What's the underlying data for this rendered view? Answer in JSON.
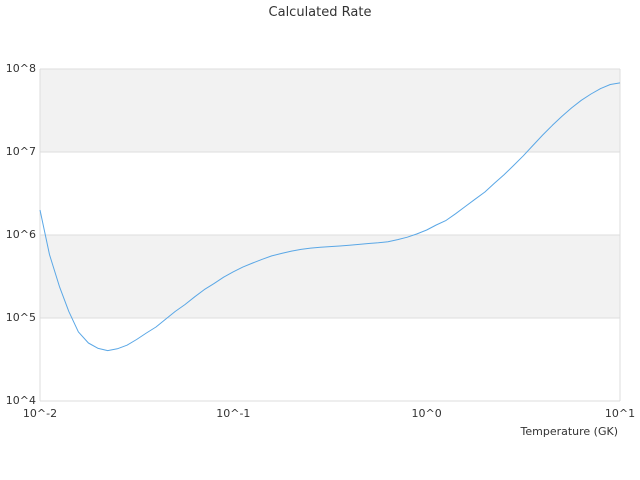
{
  "chart_data": {
    "type": "line",
    "title": "Calculated Rate",
    "xlabel": "Temperature (GK)",
    "ylabel": "",
    "x_scale": "log",
    "y_scale": "log",
    "xlim": [
      0.01,
      10
    ],
    "ylim": [
      10000,
      100000000
    ],
    "x_tick_labels": [
      "10^-2",
      "10^-1",
      "10^0",
      "10^1"
    ],
    "y_tick_labels": [
      "10^4",
      "10^5",
      "10^6",
      "10^7",
      "10^8"
    ],
    "x_tick_values": [
      0.01,
      0.1,
      1,
      10
    ],
    "y_tick_values": [
      10000,
      100000,
      1000000,
      10000000,
      100000000
    ],
    "grid": "horizontal alternating bands",
    "legend": "none",
    "colors": {
      "line": "#5aa7e6",
      "band": "#f2f2f2",
      "grid": "#dddddd"
    },
    "series": [
      {
        "x": [
          0.01,
          0.0112,
          0.0126,
          0.0141,
          0.0158,
          0.0178,
          0.02,
          0.0224,
          0.0251,
          0.0282,
          0.0316,
          0.0355,
          0.0398,
          0.0447,
          0.0501,
          0.0562,
          0.0631,
          0.0708,
          0.0794,
          0.0891,
          0.1,
          0.112,
          0.126,
          0.141,
          0.158,
          0.178,
          0.2,
          0.224,
          0.251,
          0.282,
          0.316,
          0.355,
          0.398,
          0.447,
          0.501,
          0.562,
          0.631,
          0.708,
          0.794,
          0.891,
          1.0,
          1.12,
          1.26,
          1.41,
          1.58,
          1.78,
          2.0,
          2.24,
          2.51,
          2.82,
          3.16,
          3.55,
          3.98,
          4.47,
          5.01,
          5.62,
          6.31,
          7.08,
          7.94,
          8.91,
          10.0
        ],
        "y": [
          2000000,
          580000,
          240000,
          120000,
          68000,
          50000,
          43000,
          40500,
          42500,
          47000,
          55000,
          66000,
          78000,
          97000,
          120000,
          145000,
          180000,
          220000,
          260000,
          310000,
          360000,
          410000,
          460000,
          510000,
          560000,
          600000,
          640000,
          670000,
          695000,
          710000,
          725000,
          738000,
          752000,
          770000,
          790000,
          805000,
          830000,
          880000,
          940000,
          1030000,
          1150000,
          1320000,
          1500000,
          1800000,
          2200000,
          2700000,
          3300000,
          4200000,
          5300000,
          6900000,
          9000000,
          12000000,
          16000000,
          21000000,
          27000000,
          34000000,
          42000000,
          50000000,
          58000000,
          65000000,
          68000000
        ]
      }
    ]
  }
}
